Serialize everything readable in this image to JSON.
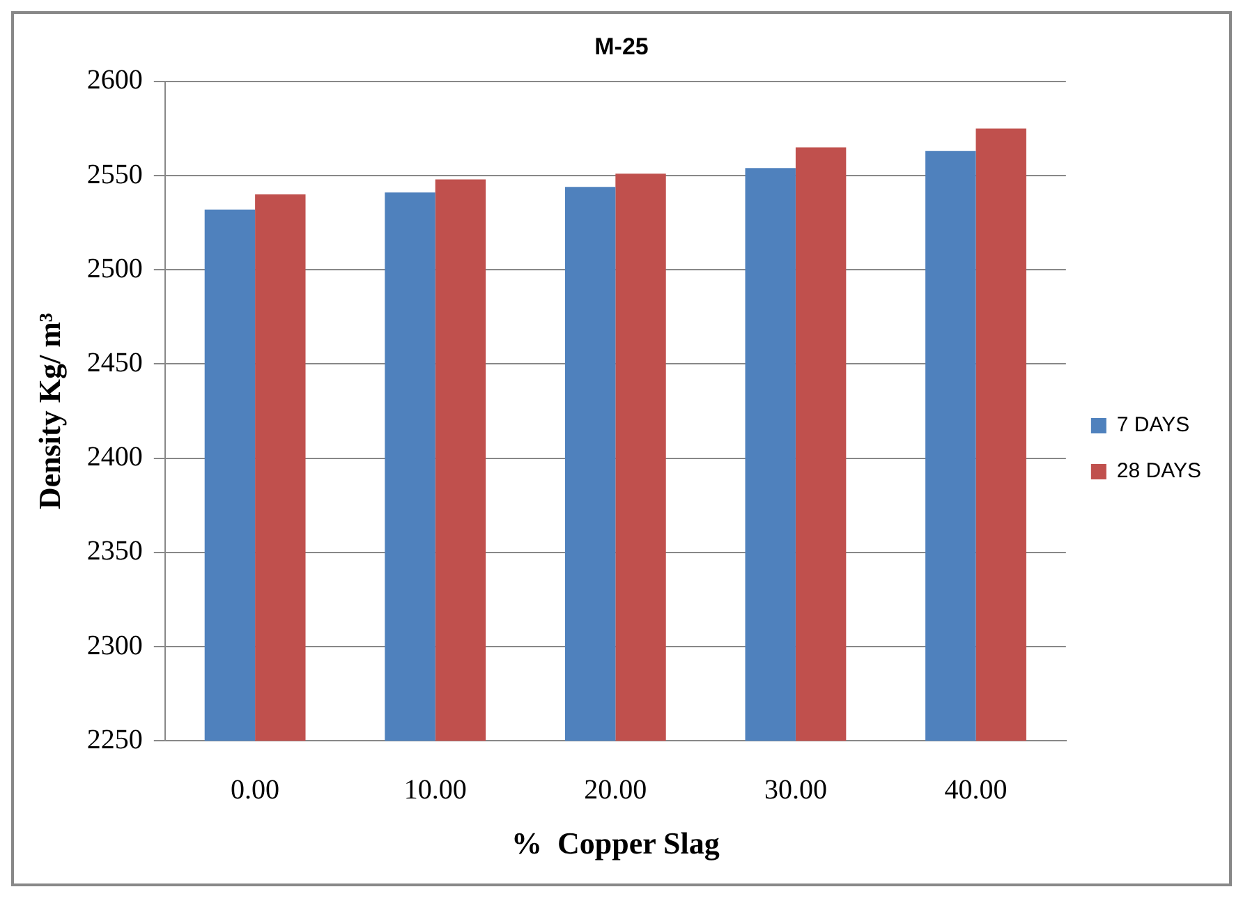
{
  "chart_data": {
    "type": "bar",
    "title": "M-25",
    "xlabel": "%  Copper Slag",
    "ylabel": "Density Kg/ m³",
    "categories": [
      "0.00",
      "10.00",
      "20.00",
      "30.00",
      "40.00"
    ],
    "series": [
      {
        "name": "7 DAYS",
        "color": "#4f81bd",
        "values": [
          2532,
          2541,
          2544,
          2554,
          2563
        ]
      },
      {
        "name": "28 DAYS",
        "color": "#c0504d",
        "values": [
          2540,
          2548,
          2551,
          2565,
          2575
        ]
      }
    ],
    "ylim": [
      2250,
      2600
    ],
    "yticks": [
      2250,
      2300,
      2350,
      2400,
      2450,
      2500,
      2550,
      2600
    ],
    "grid": "y",
    "legend": "right"
  }
}
